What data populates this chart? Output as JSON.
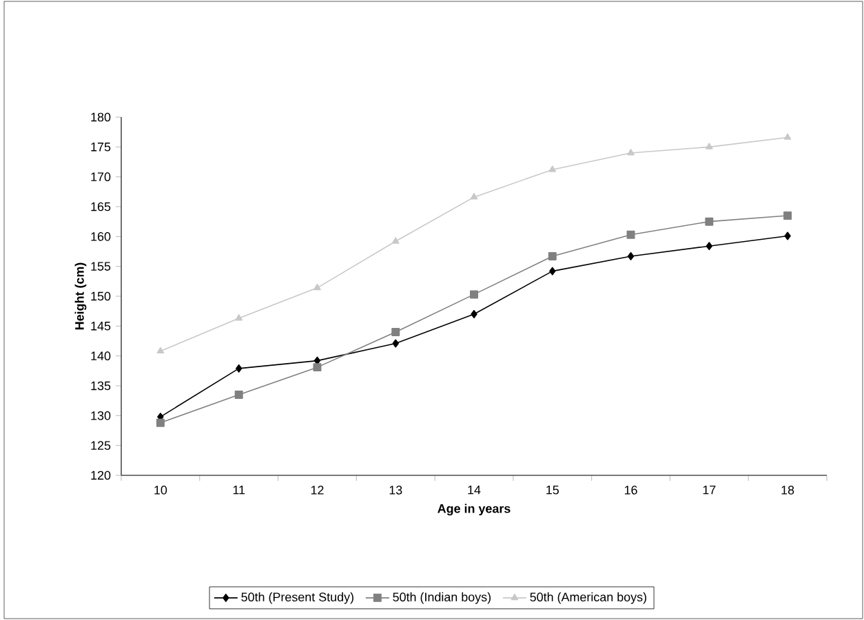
{
  "chart_data": {
    "type": "line",
    "xlabel": "Age in years",
    "ylabel": "Height (cm)",
    "categories": [
      "10",
      "11",
      "12",
      "13",
      "14",
      "15",
      "16",
      "17",
      "18"
    ],
    "ylim": [
      120,
      180
    ],
    "yticks": [
      120,
      125,
      130,
      135,
      140,
      145,
      150,
      155,
      160,
      165,
      170,
      175,
      180
    ],
    "grid": false,
    "legend": "bottom",
    "line_style": "solid",
    "series": [
      {
        "name": "50th (Present Study)",
        "color": "#000000",
        "marker": "diamond",
        "values": [
          129.8,
          137.9,
          139.2,
          142.1,
          147.0,
          154.2,
          156.7,
          158.4,
          160.1
        ]
      },
      {
        "name": "50th (Indian boys)",
        "color": "#808080",
        "marker": "square",
        "values": [
          128.8,
          133.5,
          138.1,
          144.0,
          150.3,
          156.7,
          160.3,
          162.5,
          163.5
        ]
      },
      {
        "name": "50th (American boys)",
        "color": "#c8c8c8",
        "marker": "triangle",
        "values": [
          140.8,
          146.3,
          151.4,
          159.2,
          166.6,
          171.2,
          174.0,
          175.0,
          176.6
        ]
      }
    ]
  }
}
